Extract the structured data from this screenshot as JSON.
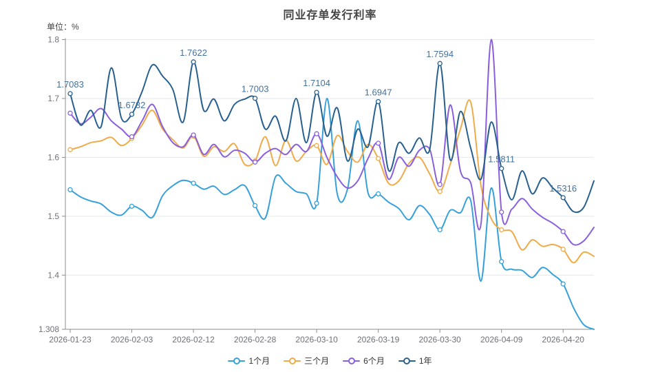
{
  "title": "同业存单发行利率",
  "unit_label": "单位：%",
  "colors": {
    "series_1m": "#36A0DA",
    "series_3m": "#EFAB49",
    "series_6m": "#8A5FDE",
    "series_1y": "#27608F",
    "point_label": "#44719C",
    "axis_line": "#8c8c8c",
    "grid_line": "#e3e6ec",
    "tick_label": "#6E7079"
  },
  "chart_data": {
    "type": "line",
    "title": "同业存单发行利率",
    "ylabel": "单位：%",
    "smooth": true,
    "grid": true,
    "legend_position": "bottom",
    "ylim": [
      1.308,
      1.8
    ],
    "y_ticks": [
      1.8,
      1.7,
      1.6,
      1.5,
      1.4,
      1.308
    ],
    "y_tick_labels": [
      "1.8",
      "1.7",
      "1.6",
      "1.5",
      "1.4",
      "1.308"
    ],
    "x_tick_indices": [
      0,
      6,
      12,
      18,
      24,
      30,
      36,
      42,
      48
    ],
    "x_tick_labels": [
      "2026-01-23",
      "2026-02-03",
      "2026-02-12",
      "2026-02-28",
      "2026-03-10",
      "2026-03-19",
      "2026-03-30",
      "2026-04-09",
      "2026-04-20"
    ],
    "marker_indices": [
      0,
      6,
      12,
      18,
      24,
      30,
      36,
      42,
      48
    ],
    "labeled_series": "1年",
    "point_labels": [
      "1.7083",
      "1.6732",
      "1.7622",
      "1.7003",
      "1.7104",
      "1.6947",
      "1.7594",
      "1.5811",
      "1.5316"
    ],
    "series": [
      {
        "name": "1个月",
        "color": "#36A0DA",
        "values": [
          1.545,
          1.533,
          1.526,
          1.521,
          1.507,
          1.502,
          1.517,
          1.51,
          1.498,
          1.535,
          1.552,
          1.561,
          1.556,
          1.546,
          1.551,
          1.537,
          1.545,
          1.552,
          1.518,
          1.497,
          1.567,
          1.556,
          1.542,
          1.538,
          1.522,
          1.7,
          1.538,
          1.546,
          1.662,
          1.54,
          1.538,
          1.524,
          1.513,
          1.494,
          1.518,
          1.503,
          1.477,
          1.51,
          1.506,
          1.527,
          1.39,
          1.548,
          1.423,
          1.41,
          1.408,
          1.396,
          1.413,
          1.401,
          1.385,
          1.345,
          1.316,
          1.308
        ]
      },
      {
        "name": "三个月",
        "color": "#EFAB49",
        "values": [
          1.613,
          1.618,
          1.625,
          1.628,
          1.634,
          1.62,
          1.632,
          1.655,
          1.68,
          1.648,
          1.63,
          1.616,
          1.636,
          1.602,
          1.618,
          1.61,
          1.623,
          1.588,
          1.594,
          1.635,
          1.586,
          1.629,
          1.594,
          1.61,
          1.62,
          1.588,
          1.637,
          1.61,
          1.592,
          1.622,
          1.598,
          1.556,
          1.56,
          1.59,
          1.6,
          1.572,
          1.542,
          1.588,
          1.648,
          1.694,
          1.552,
          1.496,
          1.477,
          1.474,
          1.443,
          1.46,
          1.449,
          1.452,
          1.444,
          1.421,
          1.439,
          1.432
        ]
      },
      {
        "name": "6个月",
        "color": "#8A5FDE",
        "values": [
          1.675,
          1.657,
          1.668,
          1.683,
          1.662,
          1.648,
          1.635,
          1.662,
          1.69,
          1.652,
          1.625,
          1.618,
          1.638,
          1.605,
          1.622,
          1.601,
          1.612,
          1.607,
          1.592,
          1.607,
          1.615,
          1.605,
          1.622,
          1.61,
          1.64,
          1.6,
          1.567,
          1.548,
          1.56,
          1.598,
          1.624,
          1.563,
          1.6,
          1.585,
          1.612,
          1.614,
          1.554,
          1.689,
          1.577,
          1.557,
          1.487,
          1.8,
          1.507,
          1.512,
          1.53,
          1.512,
          1.498,
          1.488,
          1.474,
          1.452,
          1.458,
          1.481
        ]
      },
      {
        "name": "1年",
        "color": "#27608F",
        "values": [
          1.7083,
          1.655,
          1.68,
          1.652,
          1.752,
          1.666,
          1.6732,
          1.712,
          1.757,
          1.738,
          1.715,
          1.66,
          1.7622,
          1.68,
          1.699,
          1.662,
          1.69,
          1.699,
          1.7003,
          1.648,
          1.67,
          1.628,
          1.7,
          1.625,
          1.7104,
          1.636,
          1.684,
          1.594,
          1.648,
          1.618,
          1.6947,
          1.578,
          1.625,
          1.607,
          1.633,
          1.613,
          1.7594,
          1.596,
          1.678,
          1.616,
          1.563,
          1.66,
          1.5811,
          1.528,
          1.577,
          1.538,
          1.565,
          1.548,
          1.5316,
          1.508,
          1.515,
          1.56
        ]
      }
    ],
    "legend": [
      "1个月",
      "三个月",
      "6个月",
      "1年"
    ]
  }
}
